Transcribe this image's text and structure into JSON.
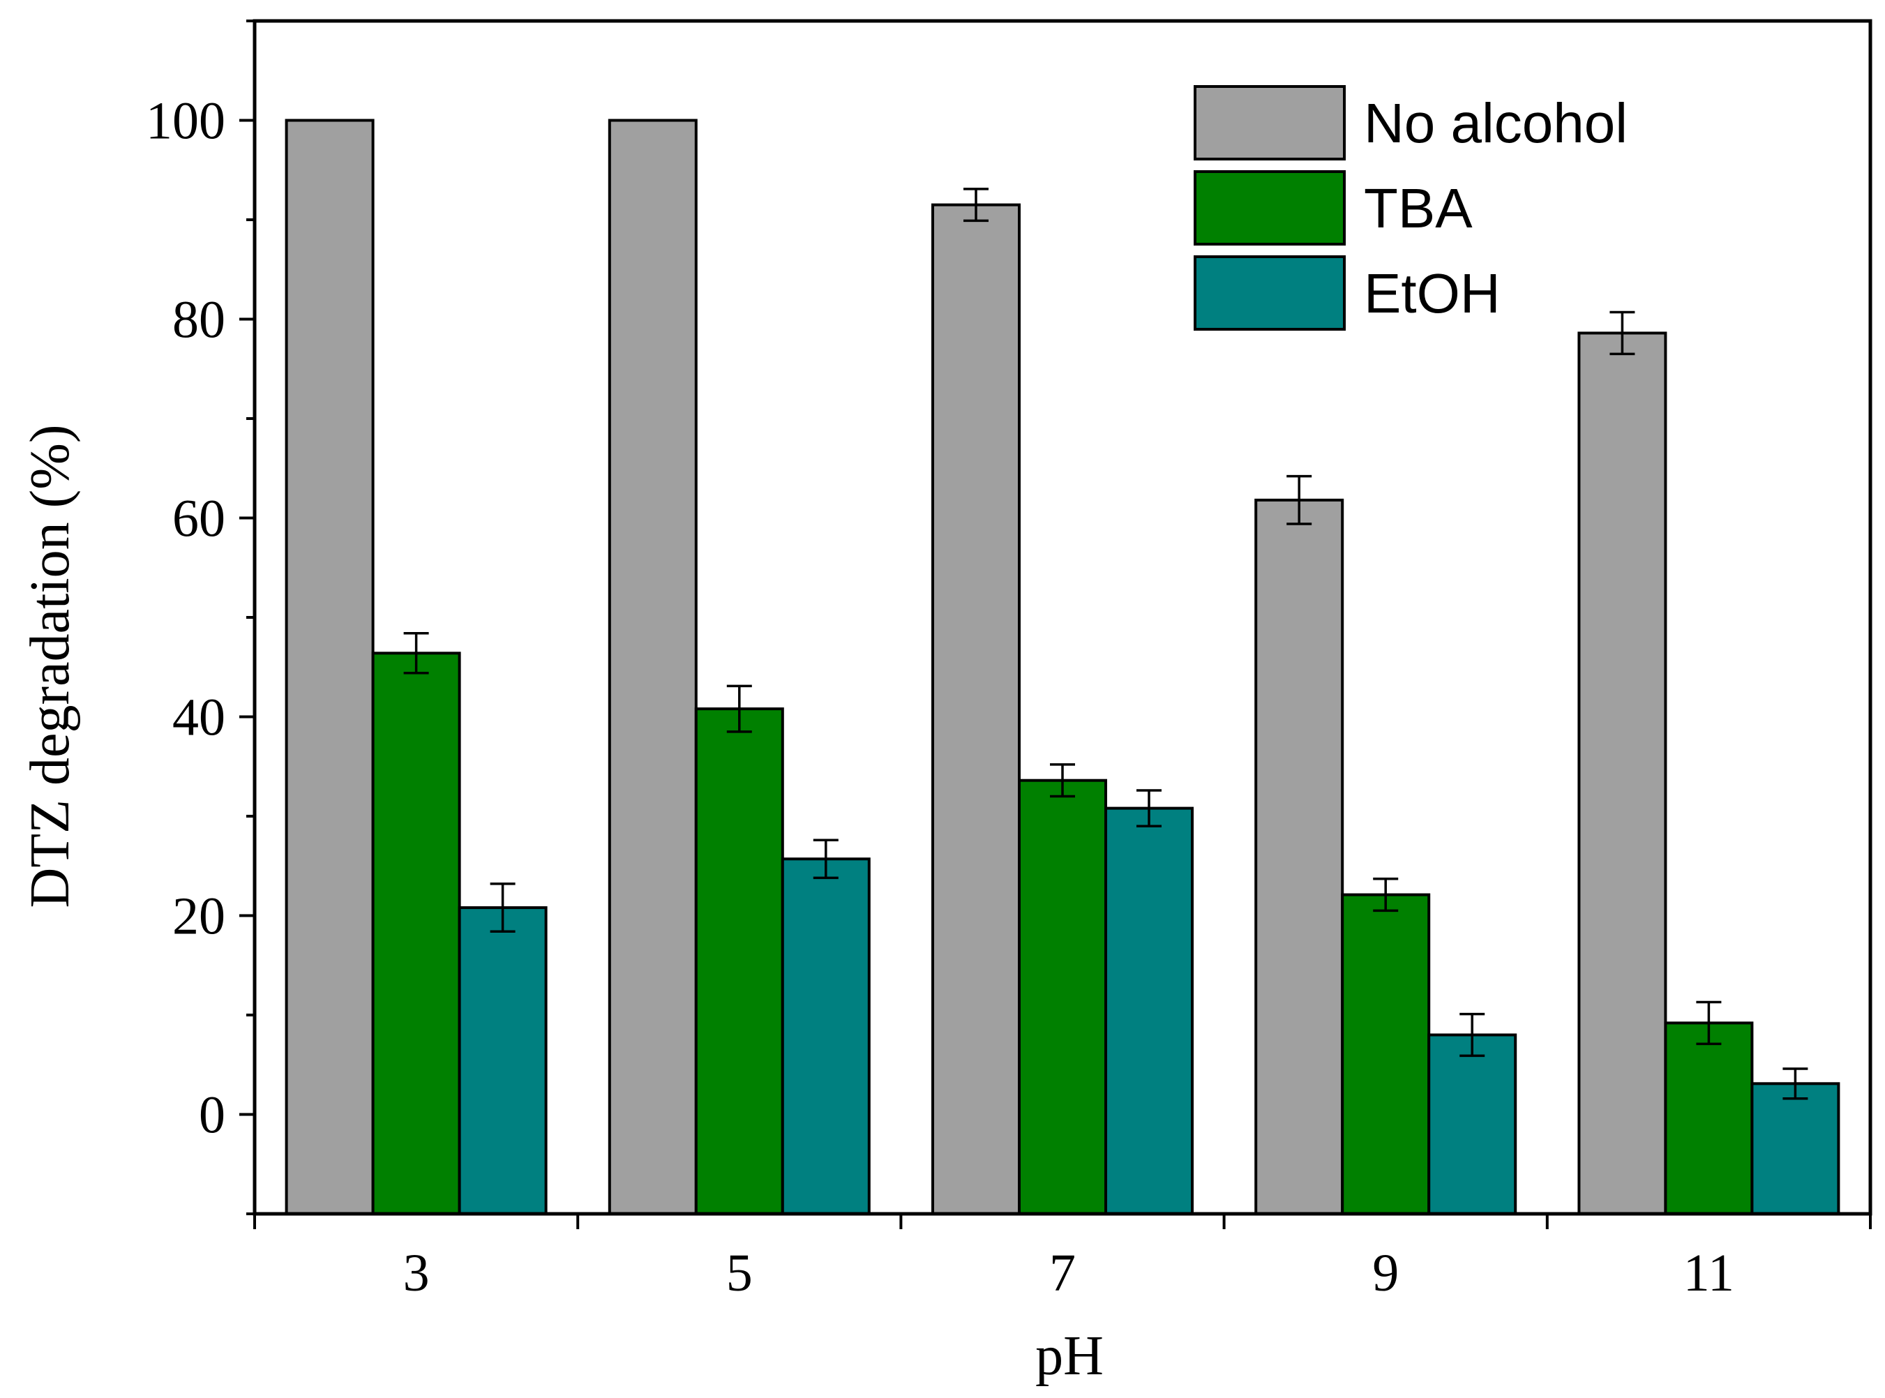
{
  "chart_data": {
    "type": "bar",
    "title": "",
    "xlabel": "pH",
    "ylabel": "DTZ degradation (%)",
    "categories": [
      "3",
      "5",
      "7",
      "9",
      "11"
    ],
    "ylim": [
      -10,
      110
    ],
    "yticks": [
      0,
      20,
      40,
      60,
      80,
      100
    ],
    "yticks_minor": [
      -10,
      10,
      30,
      50,
      70,
      90,
      110
    ],
    "grid": false,
    "legend_position": "top-right",
    "series": [
      {
        "name": "No alcohol",
        "color": "#a0a0a0",
        "values": [
          100,
          100,
          91.5,
          61.8,
          78.6
        ],
        "errors": [
          0,
          0,
          1.6,
          2.4,
          2.1
        ]
      },
      {
        "name": "TBA",
        "color": "#008000",
        "values": [
          46.4,
          40.8,
          33.6,
          22.1,
          9.2
        ],
        "errors": [
          2.0,
          2.3,
          1.6,
          1.6,
          2.1
        ]
      },
      {
        "name": "EtOH",
        "color": "#008080",
        "values": [
          20.8,
          25.7,
          30.8,
          8.0,
          3.1
        ],
        "errors": [
          2.4,
          1.9,
          1.8,
          2.1,
          1.5
        ]
      }
    ]
  }
}
